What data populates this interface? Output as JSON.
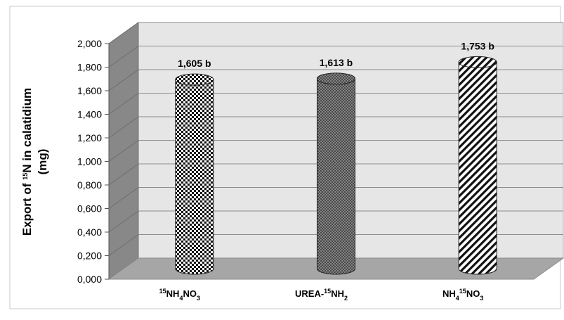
{
  "chart_data": {
    "type": "bar",
    "categories": [
      "15NH4NO3",
      "UREA-15NH2",
      "NH415NO3"
    ],
    "category_labels": [
      {
        "parts": [
          {
            "t": "15",
            "s": "sup"
          },
          {
            "t": "NH",
            "s": ""
          },
          {
            "t": "4",
            "s": "sub"
          },
          {
            "t": "NO",
            "s": ""
          },
          {
            "t": "3",
            "s": "sub"
          }
        ]
      },
      {
        "parts": [
          {
            "t": "UREA-",
            "s": ""
          },
          {
            "t": "15",
            "s": "sup"
          },
          {
            "t": "NH",
            "s": ""
          },
          {
            "t": "2",
            "s": "sub"
          }
        ]
      },
      {
        "parts": [
          {
            "t": "NH",
            "s": ""
          },
          {
            "t": "4",
            "s": "sub"
          },
          {
            "t": "15",
            "s": "sup"
          },
          {
            "t": "NO",
            "s": ""
          },
          {
            "t": "3",
            "s": "sub"
          }
        ]
      }
    ],
    "values": [
      1.605,
      1.613,
      1.753
    ],
    "data_labels": [
      "1,605 b",
      "1,613 b",
      "1,753 b"
    ],
    "ylabel_line1": "Export of 15N in calatidium",
    "ylabel_line1_parts": [
      {
        "t": "Export of ",
        "s": ""
      },
      {
        "t": "15",
        "s": "sup"
      },
      {
        "t": "N in calatidium",
        "s": ""
      }
    ],
    "ylabel_line2": "(mg)",
    "ylim": [
      0,
      2
    ],
    "yticks": [
      0,
      0.2,
      0.4,
      0.6,
      0.8,
      1.0,
      1.2,
      1.4,
      1.6,
      1.8,
      2.0
    ],
    "ytick_labels": [
      "0,000",
      "0,200",
      "0,400",
      "0,600",
      "0,800",
      "1,000",
      "1,200",
      "1,400",
      "1,600",
      "1,800",
      "2,000"
    ],
    "grid": true,
    "legend": "none",
    "bar_patterns": [
      "checker",
      "dots",
      "diagonal"
    ],
    "colors": {
      "wall": "#e6e6e6",
      "side_wall": "#888888",
      "floor": "#a6a6a6",
      "grid": "#8c8c8c",
      "bar_stroke": "#222222"
    }
  }
}
